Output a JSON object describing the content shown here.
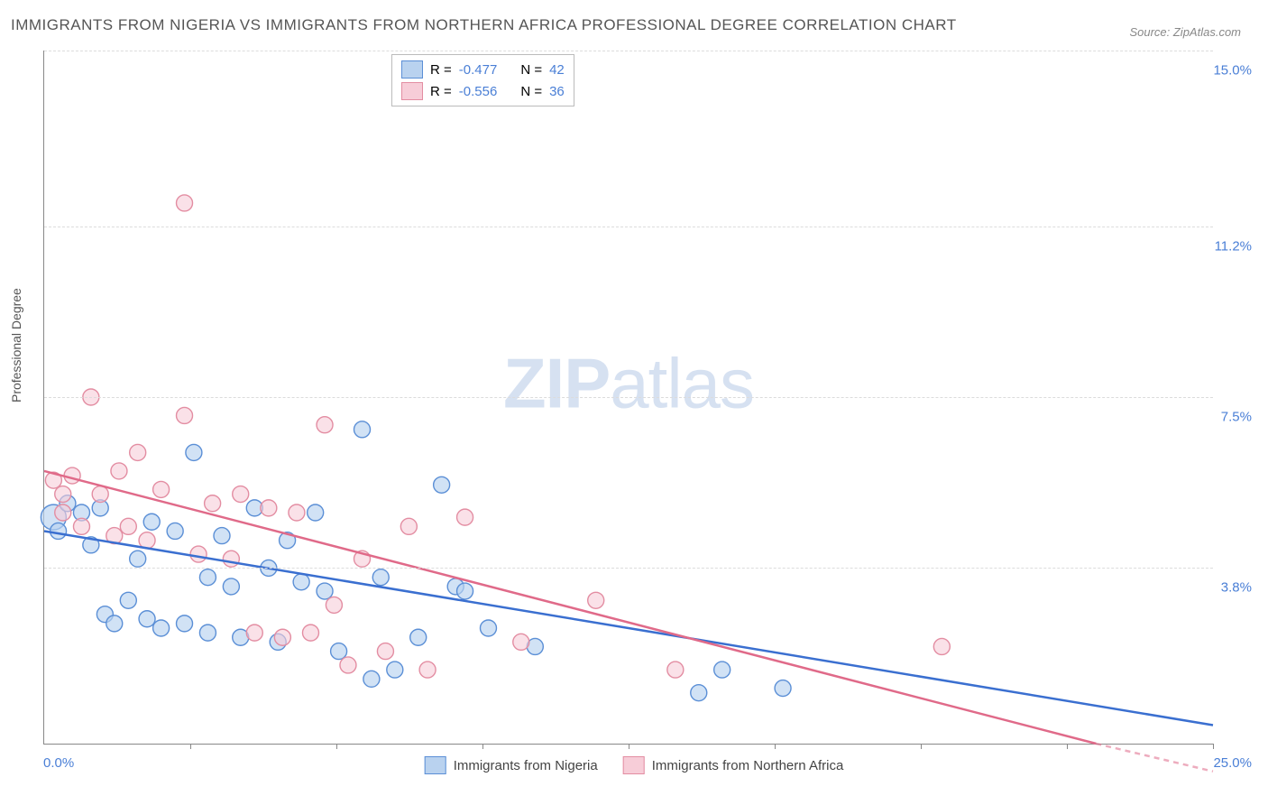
{
  "title": "IMMIGRANTS FROM NIGERIA VS IMMIGRANTS FROM NORTHERN AFRICA PROFESSIONAL DEGREE CORRELATION CHART",
  "source": "Source: ZipAtlas.com",
  "ylabel": "Professional Degree",
  "watermark_a": "ZIP",
  "watermark_b": "atlas",
  "chart": {
    "type": "scatter-with-trendlines",
    "background_color": "#ffffff",
    "grid_color": "#dcdcdc",
    "axis_color": "#888888",
    "xlim": [
      0,
      25
    ],
    "ylim": [
      0,
      15
    ],
    "x_ticks_marks": [
      3.125,
      6.25,
      9.375,
      12.5,
      15.625,
      18.75,
      21.875,
      25.0
    ],
    "x_tick_labels": {
      "left": "0.0%",
      "right": "25.0%"
    },
    "y_gridlines": [
      3.8,
      7.5,
      11.2,
      15.0
    ],
    "y_tick_labels": [
      "3.8%",
      "7.5%",
      "11.2%",
      "15.0%"
    ],
    "y_tick_color": "#4a7fd6",
    "legend_stats": [
      {
        "swatch_fill": "#b9d2ef",
        "swatch_border": "#5b8fd6",
        "r_label": "R =",
        "r": "-0.477",
        "n_label": "N =",
        "n": "42"
      },
      {
        "swatch_fill": "#f7cdd8",
        "swatch_border": "#e38da2",
        "r_label": "R =",
        "r": "-0.556",
        "n_label": "N =",
        "n": "36"
      }
    ],
    "legend_bottom": [
      {
        "swatch_fill": "#b9d2ef",
        "swatch_border": "#5b8fd6",
        "label": "Immigrants from Nigeria"
      },
      {
        "swatch_fill": "#f7cdd8",
        "swatch_border": "#e38da2",
        "label": "Immigrants from Northern Africa"
      }
    ],
    "series": [
      {
        "name": "Immigrants from Nigeria",
        "marker_fill": "#b9d2ef",
        "marker_stroke": "#5b8fd6",
        "marker_fill_opacity": 0.65,
        "marker_radius": 9,
        "trend_color": "#3a6fd0",
        "trend_width": 2.5,
        "trend": {
          "x1": 0,
          "y1": 4.6,
          "x2": 25,
          "y2": 0.4
        },
        "points": [
          {
            "x": 0.2,
            "y": 4.9,
            "r": 14
          },
          {
            "x": 0.3,
            "y": 4.6
          },
          {
            "x": 0.5,
            "y": 5.2
          },
          {
            "x": 0.8,
            "y": 5.0
          },
          {
            "x": 1.0,
            "y": 4.3
          },
          {
            "x": 1.2,
            "y": 5.1
          },
          {
            "x": 1.3,
            "y": 2.8
          },
          {
            "x": 1.5,
            "y": 2.6
          },
          {
            "x": 1.8,
            "y": 3.1
          },
          {
            "x": 2.0,
            "y": 4.0
          },
          {
            "x": 2.2,
            "y": 2.7
          },
          {
            "x": 2.3,
            "y": 4.8
          },
          {
            "x": 2.5,
            "y": 2.5
          },
          {
            "x": 2.8,
            "y": 4.6
          },
          {
            "x": 3.0,
            "y": 2.6
          },
          {
            "x": 3.2,
            "y": 6.3
          },
          {
            "x": 3.5,
            "y": 3.6
          },
          {
            "x": 3.5,
            "y": 2.4
          },
          {
            "x": 3.8,
            "y": 4.5
          },
          {
            "x": 4.0,
            "y": 3.4
          },
          {
            "x": 4.2,
            "y": 2.3
          },
          {
            "x": 4.5,
            "y": 5.1
          },
          {
            "x": 4.8,
            "y": 3.8
          },
          {
            "x": 5.0,
            "y": 2.2
          },
          {
            "x": 5.2,
            "y": 4.4
          },
          {
            "x": 5.5,
            "y": 3.5
          },
          {
            "x": 5.8,
            "y": 5.0
          },
          {
            "x": 6.0,
            "y": 3.3
          },
          {
            "x": 6.3,
            "y": 2.0
          },
          {
            "x": 6.8,
            "y": 6.8
          },
          {
            "x": 7.0,
            "y": 1.4
          },
          {
            "x": 7.2,
            "y": 3.6
          },
          {
            "x": 7.5,
            "y": 1.6
          },
          {
            "x": 8.0,
            "y": 2.3
          },
          {
            "x": 8.5,
            "y": 5.6
          },
          {
            "x": 8.8,
            "y": 3.4
          },
          {
            "x": 9.0,
            "y": 3.3
          },
          {
            "x": 9.5,
            "y": 2.5
          },
          {
            "x": 10.5,
            "y": 2.1
          },
          {
            "x": 14.0,
            "y": 1.1
          },
          {
            "x": 15.8,
            "y": 1.2
          },
          {
            "x": 14.5,
            "y": 1.6
          }
        ]
      },
      {
        "name": "Immigrants from Northern Africa",
        "marker_fill": "#f7cdd8",
        "marker_stroke": "#e38da2",
        "marker_fill_opacity": 0.6,
        "marker_radius": 9,
        "trend_color": "#e06a89",
        "trend_width": 2.5,
        "trend": {
          "x1": 0,
          "y1": 5.9,
          "x2": 22.5,
          "y2": 0.0
        },
        "trend_dashed_extension": {
          "x1": 22.5,
          "y1": 0.0,
          "x2": 25,
          "y2": -0.6
        },
        "points": [
          {
            "x": 0.2,
            "y": 5.7
          },
          {
            "x": 0.4,
            "y": 5.4
          },
          {
            "x": 0.6,
            "y": 5.8
          },
          {
            "x": 0.8,
            "y": 4.7
          },
          {
            "x": 1.0,
            "y": 7.5
          },
          {
            "x": 1.2,
            "y": 5.4
          },
          {
            "x": 1.5,
            "y": 4.5
          },
          {
            "x": 1.6,
            "y": 5.9
          },
          {
            "x": 1.8,
            "y": 4.7
          },
          {
            "x": 2.0,
            "y": 6.3
          },
          {
            "x": 2.2,
            "y": 4.4
          },
          {
            "x": 2.5,
            "y": 5.5
          },
          {
            "x": 3.0,
            "y": 7.1
          },
          {
            "x": 3.0,
            "y": 11.7
          },
          {
            "x": 3.3,
            "y": 4.1
          },
          {
            "x": 3.6,
            "y": 5.2
          },
          {
            "x": 4.0,
            "y": 4.0
          },
          {
            "x": 4.2,
            "y": 5.4
          },
          {
            "x": 4.5,
            "y": 2.4
          },
          {
            "x": 4.8,
            "y": 5.1
          },
          {
            "x": 5.1,
            "y": 2.3
          },
          {
            "x": 5.4,
            "y": 5.0
          },
          {
            "x": 5.7,
            "y": 2.4
          },
          {
            "x": 6.0,
            "y": 6.9
          },
          {
            "x": 6.2,
            "y": 3.0
          },
          {
            "x": 6.5,
            "y": 1.7
          },
          {
            "x": 6.8,
            "y": 4.0
          },
          {
            "x": 7.3,
            "y": 2.0
          },
          {
            "x": 7.8,
            "y": 4.7
          },
          {
            "x": 8.2,
            "y": 1.6
          },
          {
            "x": 9.0,
            "y": 4.9
          },
          {
            "x": 10.2,
            "y": 2.2
          },
          {
            "x": 11.8,
            "y": 3.1
          },
          {
            "x": 13.5,
            "y": 1.6
          },
          {
            "x": 19.2,
            "y": 2.1
          },
          {
            "x": 0.4,
            "y": 5.0
          }
        ]
      }
    ]
  }
}
